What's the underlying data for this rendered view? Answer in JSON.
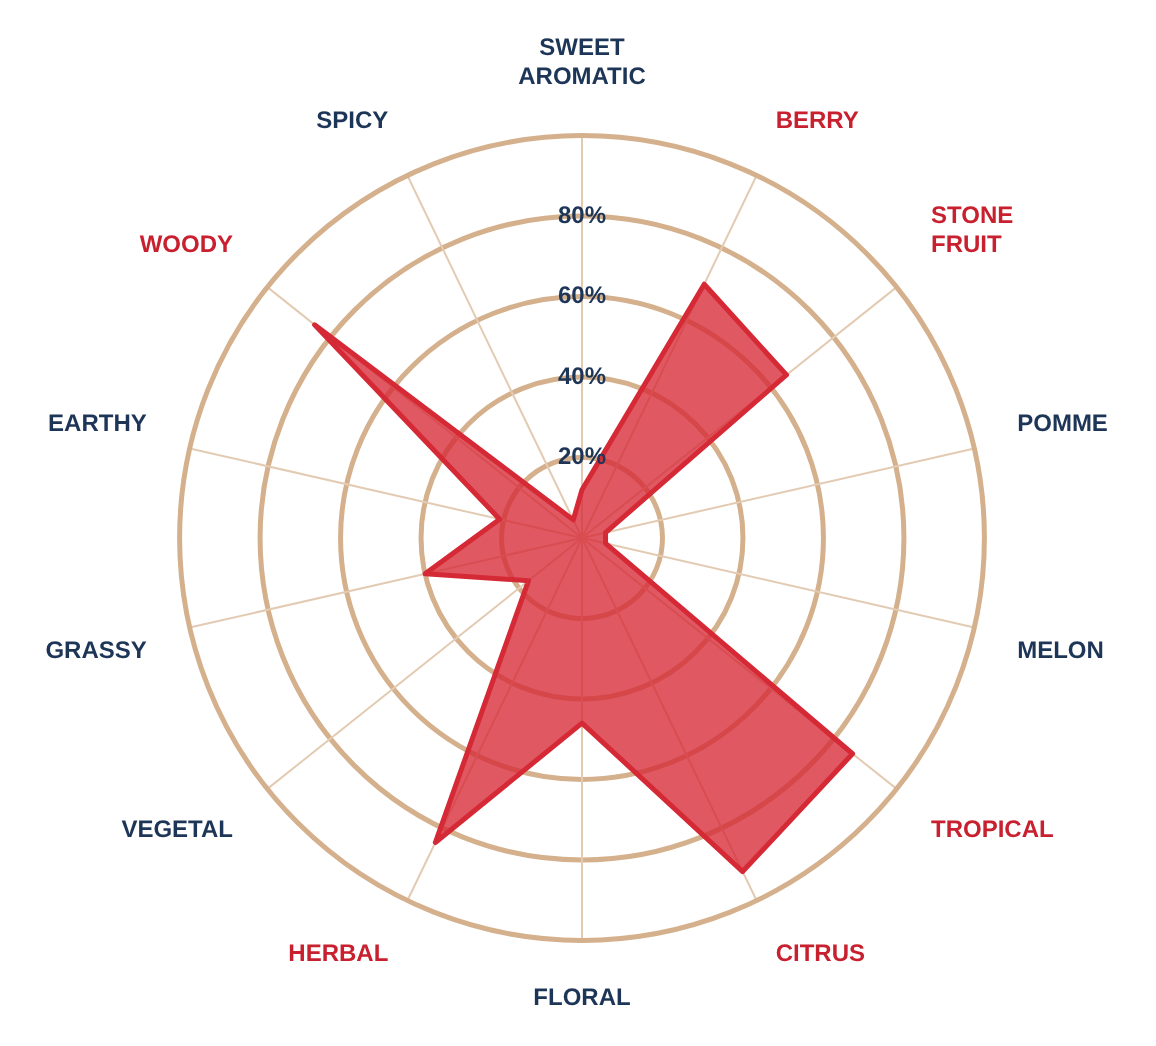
{
  "chart_data": {
    "type": "radar",
    "categories": [
      "SWEET AROMATIC",
      "BERRY",
      "STONE FRUIT",
      "POMME",
      "MELON",
      "TROPICAL",
      "CITRUS",
      "FLORAL",
      "HERBAL",
      "VEGETAL",
      "GRASSY",
      "EARTHY",
      "WOODY",
      "SPICY"
    ],
    "series": [
      {
        "color": "#d62936",
        "values": [
          12,
          70,
          65,
          6,
          6,
          86,
          92,
          46,
          84,
          17,
          40,
          21,
          85,
          5
        ]
      }
    ],
    "ylim": [
      0,
      100
    ],
    "yticks": [
      {
        "value": 20,
        "label": "20%"
      },
      {
        "value": 40,
        "label": "40%"
      },
      {
        "value": 60,
        "label": "60%"
      },
      {
        "value": 80,
        "label": "80%"
      }
    ],
    "grid": true,
    "legend": false
  }
}
